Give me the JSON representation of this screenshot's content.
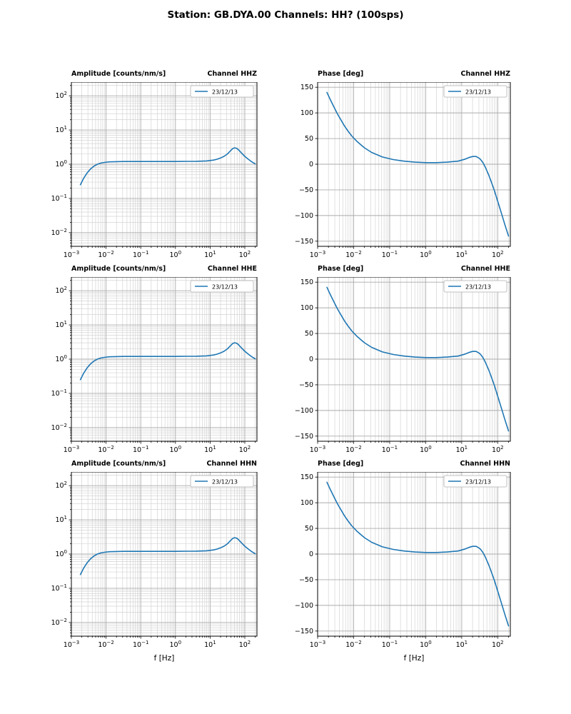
{
  "header": {
    "title": "Station: GB.DYA.00 Channels: HH? (100sps)"
  },
  "chart_data": {
    "type": "line",
    "legend": "23/12/13",
    "legend_position": "upper right",
    "line_color": "#1f77b4",
    "grid": "both",
    "xlabel": "f [Hz]",
    "amp_title": "Amplitude [counts/nm/s]",
    "phase_title": "Phase [deg]",
    "channels": [
      "HHZ",
      "HHE",
      "HHN"
    ],
    "channel_titles": [
      "Channel HHZ",
      "Channel HHE",
      "Channel HHN"
    ],
    "xlim_log10": [
      -3,
      2.35
    ],
    "x_major_ticks_log10": [
      -3,
      -2,
      -1,
      0,
      1,
      2
    ],
    "x_log10": [
      -2.74,
      -2.65,
      -2.55,
      -2.45,
      -2.35,
      -2.25,
      -2.15,
      -2.05,
      -1.9,
      -1.7,
      -1.5,
      -1.2,
      -0.9,
      -0.6,
      -0.3,
      0,
      0.3,
      0.6,
      0.9,
      1.1,
      1.2,
      1.3,
      1.4,
      1.5,
      1.55,
      1.6,
      1.65,
      1.7,
      1.75,
      1.8,
      1.9,
      2.0,
      2.1,
      2.2,
      2.3
    ],
    "amplitude": {
      "values": [
        0.25,
        0.38,
        0.55,
        0.72,
        0.88,
        1.0,
        1.08,
        1.13,
        1.17,
        1.19,
        1.2,
        1.2,
        1.2,
        1.2,
        1.2,
        1.2,
        1.21,
        1.22,
        1.25,
        1.32,
        1.4,
        1.52,
        1.7,
        2.0,
        2.25,
        2.55,
        2.85,
        3.0,
        2.95,
        2.75,
        2.15,
        1.7,
        1.4,
        1.18,
        1.02
      ],
      "ylim_log10": [
        -2.4,
        2.4
      ],
      "major_ticks_log10": [
        -2,
        -1,
        0,
        1,
        2
      ]
    },
    "phase": {
      "values": [
        140,
        126,
        112,
        98,
        86,
        74,
        64,
        55,
        44,
        32,
        23,
        14,
        9,
        6,
        4,
        3,
        3,
        4,
        6,
        10,
        13,
        15,
        15,
        11,
        7,
        2,
        -5,
        -13,
        -21,
        -30,
        -50,
        -72,
        -95,
        -118,
        -140
      ],
      "ylim": [
        -160,
        160
      ],
      "major_ticks": [
        150,
        100,
        50,
        0,
        -50,
        -100,
        -150
      ]
    },
    "note": "All three channels (HHZ, HHE, HHN) show identical response curves"
  }
}
